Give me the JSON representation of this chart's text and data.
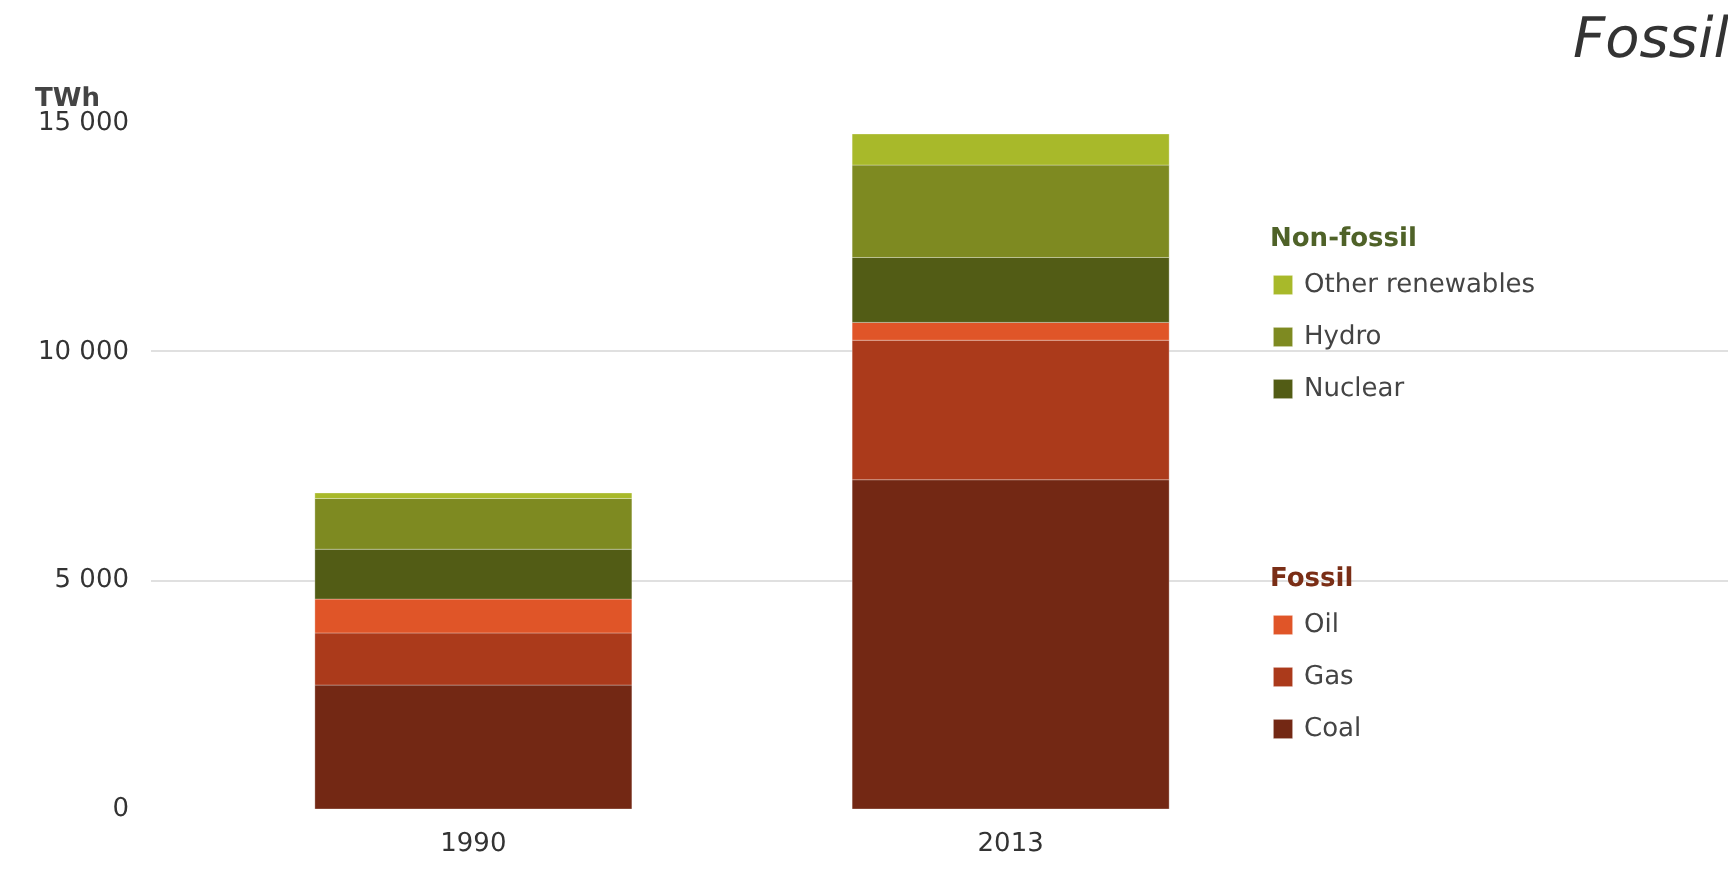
{
  "chart_data": {
    "type": "bar",
    "stacked": true,
    "title": "Fossil",
    "ylabel": "TWh",
    "categories": [
      "1990",
      "2013"
    ],
    "series": [
      {
        "name": "Coal",
        "color": "#732814",
        "values": [
          2710,
          7200
        ]
      },
      {
        "name": "Gas",
        "color": "#ab3a1b",
        "values": [
          1140,
          3050
        ]
      },
      {
        "name": "Oil",
        "color": "#e05528",
        "values": [
          740,
          390
        ]
      },
      {
        "name": "Nuclear",
        "color": "#525c15",
        "values": [
          1090,
          1420
        ]
      },
      {
        "name": "Hydro",
        "color": "#7e8a21",
        "values": [
          1110,
          2020
        ]
      },
      {
        "name": "Other renewables",
        "color": "#a8b92a",
        "values": [
          120,
          680
        ]
      }
    ],
    "annotations": [
      "Non-fossil",
      "Fossil"
    ],
    "ylim": [
      0,
      15000
    ],
    "yticks": [
      0,
      {
        "value": 5000,
        "label": "5 000"
      },
      {
        "value": 10000,
        "label": "10 000"
      },
      {
        "value": 15000,
        "label": "15 000"
      }
    ],
    "grid": "y",
    "legend": "right"
  }
}
